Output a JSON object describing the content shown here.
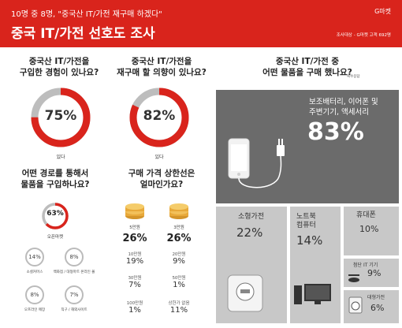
{
  "header": {
    "subtitle": "10명 중 8명, \"중국산 IT/가전 재구매 하겠다\"",
    "title": "중국 IT/가전 선호도 조사",
    "brand": "G마켓",
    "meta": "조사대상 - G마켓 고객 692명"
  },
  "q1": {
    "question_line1": "중국산 IT/가전을",
    "question_line2": "구입한 경험이 있나요?",
    "value": "75%",
    "fraction": 0.75,
    "caption": "있다"
  },
  "q2": {
    "question_line1": "중국산 IT/가전을",
    "question_line2": "재구매 할 의향이 있나요?",
    "value": "82%",
    "fraction": 0.82,
    "caption": "있다"
  },
  "q3": {
    "question_line1": "중국산 IT/가전 중",
    "question_line2": "어떤 물품을 구매 했나요?",
    "note": "복수응답",
    "top_label_line1": "보조배터리, 이어폰 및",
    "top_label_line2": "주변기기, 액세서리",
    "top_value": "83%",
    "tiles": [
      {
        "label": "소형가전",
        "value": "22%"
      },
      {
        "label_line1": "노트북",
        "label_line2": "컴퓨터",
        "value": "14%"
      },
      {
        "label": "휴대폰",
        "value": "10%"
      },
      {
        "label": "첨단 IT 기기",
        "value": "9%"
      },
      {
        "label": "대형가전",
        "value": "6%"
      }
    ]
  },
  "q4": {
    "question_line1": "어떤 경로를 통해서",
    "question_line2": "물품을 구입하나요?",
    "main_value": "63%",
    "main_fraction": 0.63,
    "main_caption": "오픈마켓",
    "others": [
      {
        "value": "14%",
        "caption": "소셜커머스"
      },
      {
        "value": "8%",
        "caption": "백화점 / 대형마트 온라인 몰"
      },
      {
        "value": "8%",
        "caption": "오프라인 매장"
      },
      {
        "value": "7%",
        "caption": "직구 / 해외사이트"
      }
    ]
  },
  "q5": {
    "question_line1": "구매 가격 상한선은",
    "question_line2": "얼마인가요?",
    "top": [
      {
        "label": "5만원",
        "value": "26%"
      },
      {
        "label": "3만원",
        "value": "26%"
      }
    ],
    "rest": [
      {
        "label": "10만원",
        "value": "19%"
      },
      {
        "label": "20만원",
        "value": "9%"
      },
      {
        "label": "30만원",
        "value": "7%"
      },
      {
        "label": "50만원",
        "value": "1%"
      },
      {
        "label": "100만원",
        "value": "1%"
      },
      {
        "label": "상한가 없음",
        "value": "11%"
      }
    ]
  },
  "colors": {
    "accent": "#d9241c",
    "dark_tile": "#6b6b6b",
    "light_tile": "#c8c8c8",
    "ring_gray": "#bdbdbd",
    "coin": "#e8a93a"
  }
}
